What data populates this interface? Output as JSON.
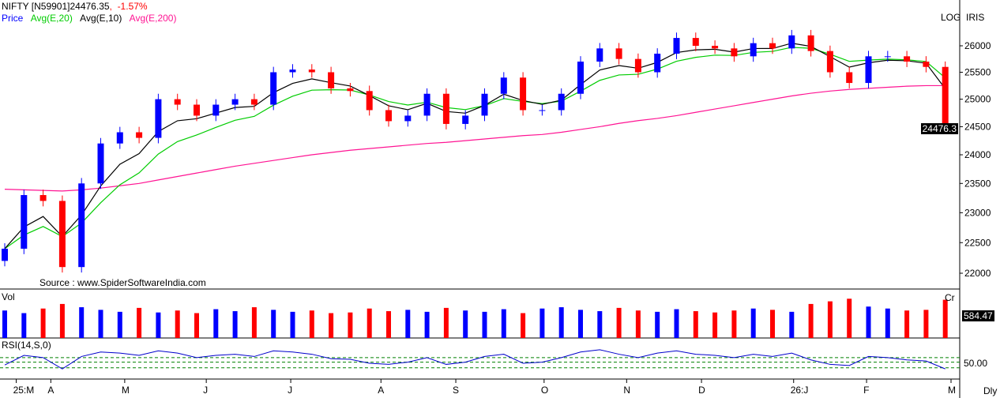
{
  "header": {
    "symbol": "NIFTY [N59901]",
    "last": "24476.35",
    "sep": ",",
    "change": "-1.57%",
    "legend": [
      {
        "label": "Price",
        "color": "#0000ff"
      },
      {
        "label": "Avg(E,20)",
        "color": "#00cc00"
      },
      {
        "label": "Avg(E,10)",
        "color": "#000000"
      },
      {
        "label": "Avg(E,200)",
        "color": "#ff1493"
      }
    ]
  },
  "scale_mode": "LOG",
  "source": "Source : www.SpiderSoftwareIndia.com",
  "broker": "IRIS",
  "volume": {
    "label": "Vol",
    "unit": "Cr",
    "last": "584.47"
  },
  "rsi": {
    "label": "RSI(14,S,0)",
    "level": "50.00"
  },
  "periodicity": "Dly",
  "colors": {
    "up": "#0000ff",
    "down": "#ff0000",
    "ema20": "#00cc00",
    "ema10": "#000000",
    "ema200": "#ff1493",
    "rsi": "#0000cc",
    "rsi_level": "#008000"
  },
  "chart_data": {
    "type": "candlestick",
    "ylim": [
      21800,
      26400
    ],
    "yscale": "log",
    "yticks": [
      22000,
      22500,
      23000,
      23500,
      24000,
      24500,
      25000,
      25500,
      26000
    ],
    "last_price_label": "24476.3",
    "xticks": [
      {
        "label": "25:M",
        "index": 0.6
      },
      {
        "label": "A",
        "index": 2.4
      },
      {
        "label": "M",
        "index": 6.25
      },
      {
        "label": "J",
        "index": 10.5
      },
      {
        "label": "J",
        "index": 14.9
      },
      {
        "label": "A",
        "index": 19.6
      },
      {
        "label": "S",
        "index": 23.5
      },
      {
        "label": "O",
        "index": 28.1
      },
      {
        "label": "N",
        "index": 32.4
      },
      {
        "label": "D",
        "index": 36.3
      },
      {
        "label": "26:J",
        "index": 41.1
      },
      {
        "label": "F",
        "index": 44.9
      },
      {
        "label": "M",
        "index": 49.3
      }
    ],
    "close": [
      22400,
      23300,
      23200,
      22100,
      23500,
      24200,
      24400,
      24300,
      25000,
      24900,
      24700,
      24900,
      25000,
      24900,
      25500,
      25550,
      25500,
      25200,
      25150,
      24800,
      24600,
      24700,
      25100,
      24550,
      24700,
      25100,
      25400,
      24800,
      24800,
      25100,
      25700,
      25950,
      25750,
      25500,
      25850,
      26150,
      26000,
      25950,
      25800,
      26050,
      25950,
      26200,
      25900,
      25500,
      25300,
      25800,
      25800,
      25700,
      25600,
      24476.35
    ],
    "ema200": [
      23400,
      23390,
      23380,
      23370,
      23390,
      23420,
      23460,
      23500,
      23560,
      23620,
      23680,
      23740,
      23800,
      23850,
      23900,
      23950,
      24000,
      24040,
      24080,
      24110,
      24140,
      24170,
      24200,
      24220,
      24250,
      24280,
      24310,
      24340,
      24360,
      24400,
      24450,
      24500,
      24560,
      24610,
      24650,
      24700,
      24760,
      24820,
      24880,
      24940,
      25000,
      25060,
      25110,
      25150,
      25180,
      25200,
      25220,
      25240,
      25250,
      25250
    ],
    "volume": [
      420,
      380,
      450,
      520,
      470,
      430,
      400,
      460,
      390,
      420,
      380,
      440,
      410,
      470,
      430,
      400,
      420,
      380,
      390,
      450,
      410,
      430,
      400,
      460,
      420,
      400,
      440,
      380,
      450,
      470,
      430,
      410,
      460,
      420,
      400,
      440,
      410,
      390,
      420,
      450,
      430,
      400,
      520,
      560,
      600,
      480,
      450,
      420,
      430,
      584.47
    ],
    "rsi": [
      45,
      62,
      58,
      38,
      60,
      68,
      66,
      62,
      70,
      66,
      58,
      62,
      64,
      60,
      70,
      68,
      64,
      56,
      55,
      48,
      46,
      50,
      58,
      46,
      50,
      60,
      64,
      48,
      50,
      58,
      68,
      72,
      64,
      58,
      66,
      70,
      64,
      62,
      58,
      64,
      60,
      66,
      54,
      46,
      44,
      60,
      58,
      54,
      52,
      38
    ]
  }
}
